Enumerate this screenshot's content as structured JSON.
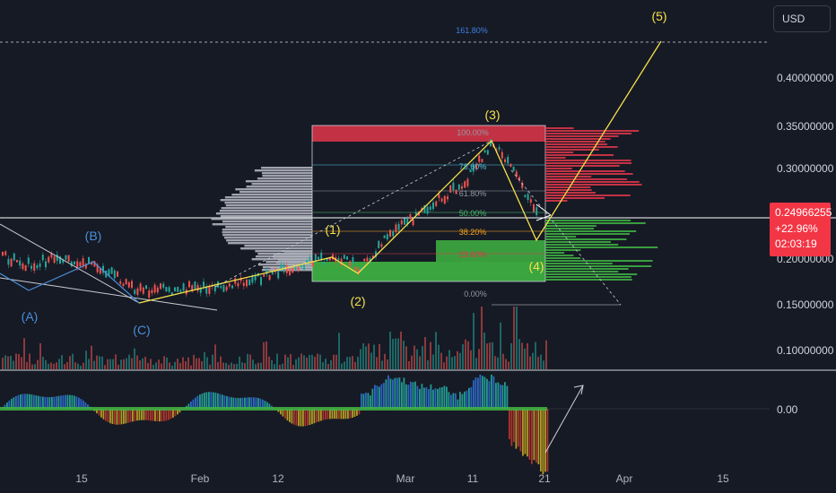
{
  "currency_button": "USD",
  "current_price": {
    "price": "0.24966255",
    "change": "+22.96%",
    "countdown": "02:03:19",
    "value": 0.24966255
  },
  "price_axis": {
    "labels": [
      "0.40000000",
      "0.35000000",
      "0.30000000",
      "0.20000000",
      "0.15000000",
      "0.10000000"
    ],
    "oscillator_label": "0.00"
  },
  "time_axis": {
    "labels": [
      "15",
      "Feb",
      "12",
      "Mar",
      "11",
      "21",
      "Apr",
      "15"
    ]
  },
  "wave_labels": {
    "A": "(A)",
    "B": "(B)",
    "C": "(C)",
    "w1": "(1)",
    "w2": "(2)",
    "w3": "(3)",
    "w4": "(4)",
    "w5": "(5)"
  },
  "fib_levels": {
    "f1618": "161.80%",
    "f100": "100.00%",
    "f786": "78.60%",
    "f618": "61.80%",
    "f50": "50.00%",
    "f382": "38.20%",
    "f236": "23.60%",
    "f0": "0.00%"
  },
  "colors": {
    "background": "#161a25",
    "wave_line": "#f5e14a",
    "correction_line": "#4a8fd8",
    "supply_zone": "#e0374a",
    "demand_zone": "#3fb543",
    "price_tag": "#f23645",
    "volume_profile": "#b8bcc6",
    "fib_161": "#3d7fe0"
  }
}
